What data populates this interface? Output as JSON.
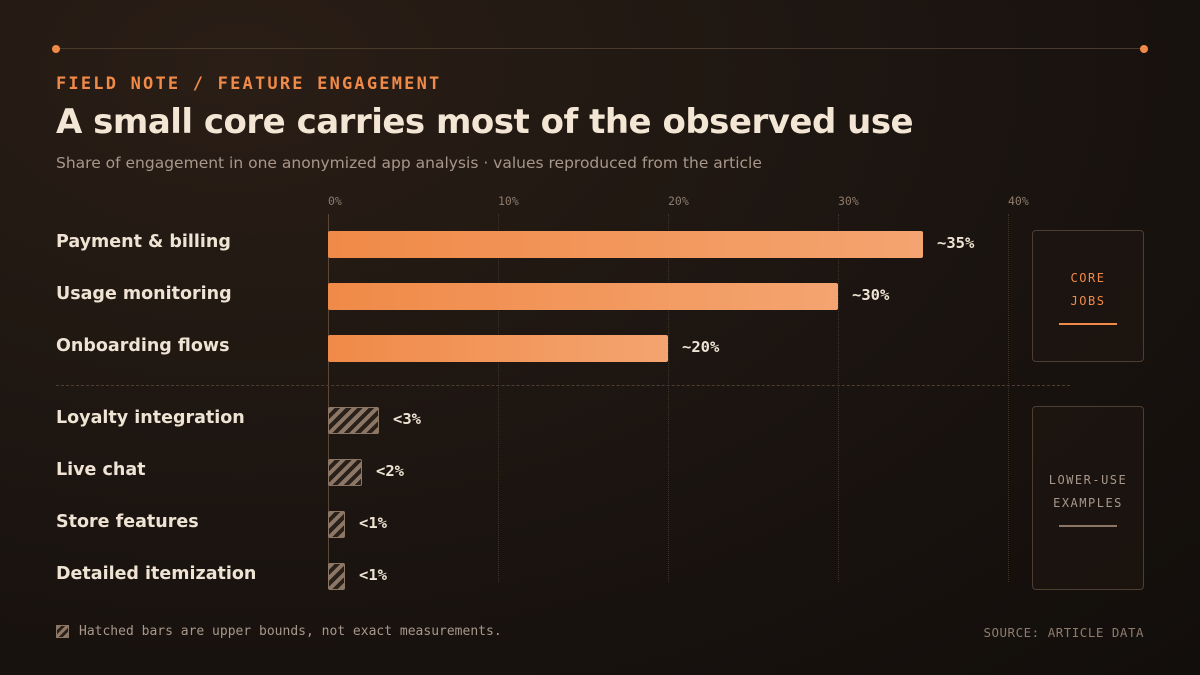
{
  "kicker": "FIELD NOTE / FEATURE ENGAGEMENT",
  "title": "A small core carries most of the observed use",
  "subtitle": "Share of engagement in one anonymized app analysis · values reproduced from the article",
  "groups": {
    "core": "CORE JOBS",
    "lower": "LOWER-USE EXAMPLES"
  },
  "legend": "Hatched bars are upper bounds, not exact measurements.",
  "source": "SOURCE: ARTICLE DATA",
  "colors": {
    "accent": "#f08a48",
    "accent_light": "#f4a470",
    "hatch": "#8c7766",
    "background": "#1b1410"
  },
  "chart_data": {
    "type": "bar",
    "orientation": "horizontal",
    "xlim": [
      0,
      40
    ],
    "ticks": [
      "0%",
      "10%",
      "20%",
      "30%",
      "40%"
    ],
    "grid": true,
    "categories": [
      "Payment & billing",
      "Usage monitoring",
      "Onboarding flows",
      "Loyalty integration",
      "Live chat",
      "Store features",
      "Detailed itemization"
    ],
    "values": [
      35,
      30,
      20,
      3,
      2,
      1,
      1
    ],
    "value_labels": [
      "~35%",
      "~30%",
      "~20%",
      "<3%",
      "<2%",
      "<1%",
      "<1%"
    ],
    "upper_bound": [
      false,
      false,
      false,
      true,
      true,
      true,
      true
    ],
    "group": [
      "core",
      "core",
      "core",
      "lower",
      "lower",
      "lower",
      "lower"
    ]
  }
}
